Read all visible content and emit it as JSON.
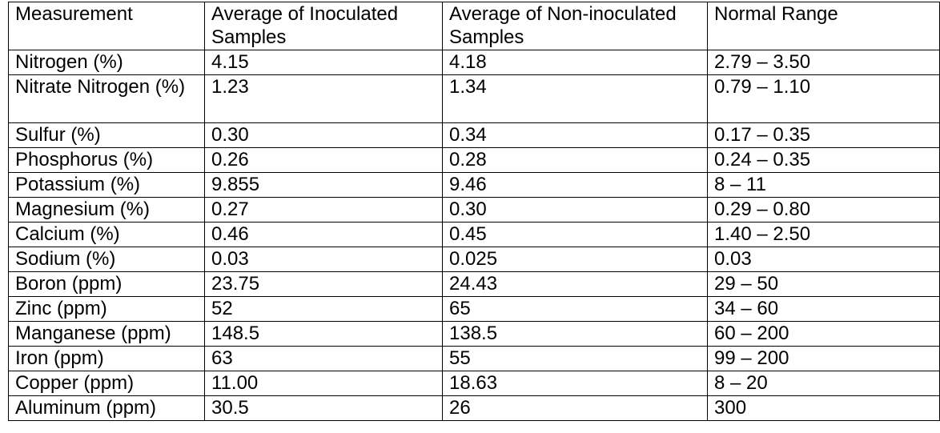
{
  "table": {
    "headers": [
      "Measurement",
      "Average of Inoculated Samples",
      "Average of Non-inoculated Samples",
      "Normal Range"
    ],
    "rows": [
      [
        "Nitrogen (%)",
        "4.15",
        "4.18",
        "2.79 – 3.50"
      ],
      [
        "Nitrate Nitrogen (%)",
        "1.23",
        "1.34",
        "0.79 – 1.10"
      ],
      [
        "Sulfur (%)",
        "0.30",
        "0.34",
        "0.17 – 0.35"
      ],
      [
        "Phosphorus (%)",
        "0.26",
        "0.28",
        "0.24 – 0.35"
      ],
      [
        "Potassium (%)",
        "9.855",
        "9.46",
        "8 – 11"
      ],
      [
        "Magnesium (%)",
        "0.27",
        "0.30",
        "0.29 – 0.80"
      ],
      [
        "Calcium (%)",
        "0.46",
        "0.45",
        "1.40 – 2.50"
      ],
      [
        "Sodium (%)",
        "0.03",
        "0.025",
        "0.03"
      ],
      [
        "Boron (ppm)",
        "23.75",
        "24.43",
        "29 – 50"
      ],
      [
        "Zinc (ppm)",
        "52",
        "65",
        "34 – 60"
      ],
      [
        "Manganese (ppm)",
        "148.5",
        "138.5",
        "60 – 200"
      ],
      [
        "Iron (ppm)",
        "63",
        "55",
        "99 – 200"
      ],
      [
        "Copper (ppm)",
        "11.00",
        "18.63",
        "8 – 20"
      ],
      [
        "Aluminum (ppm)",
        "30.5",
        "26",
        "300"
      ]
    ]
  }
}
